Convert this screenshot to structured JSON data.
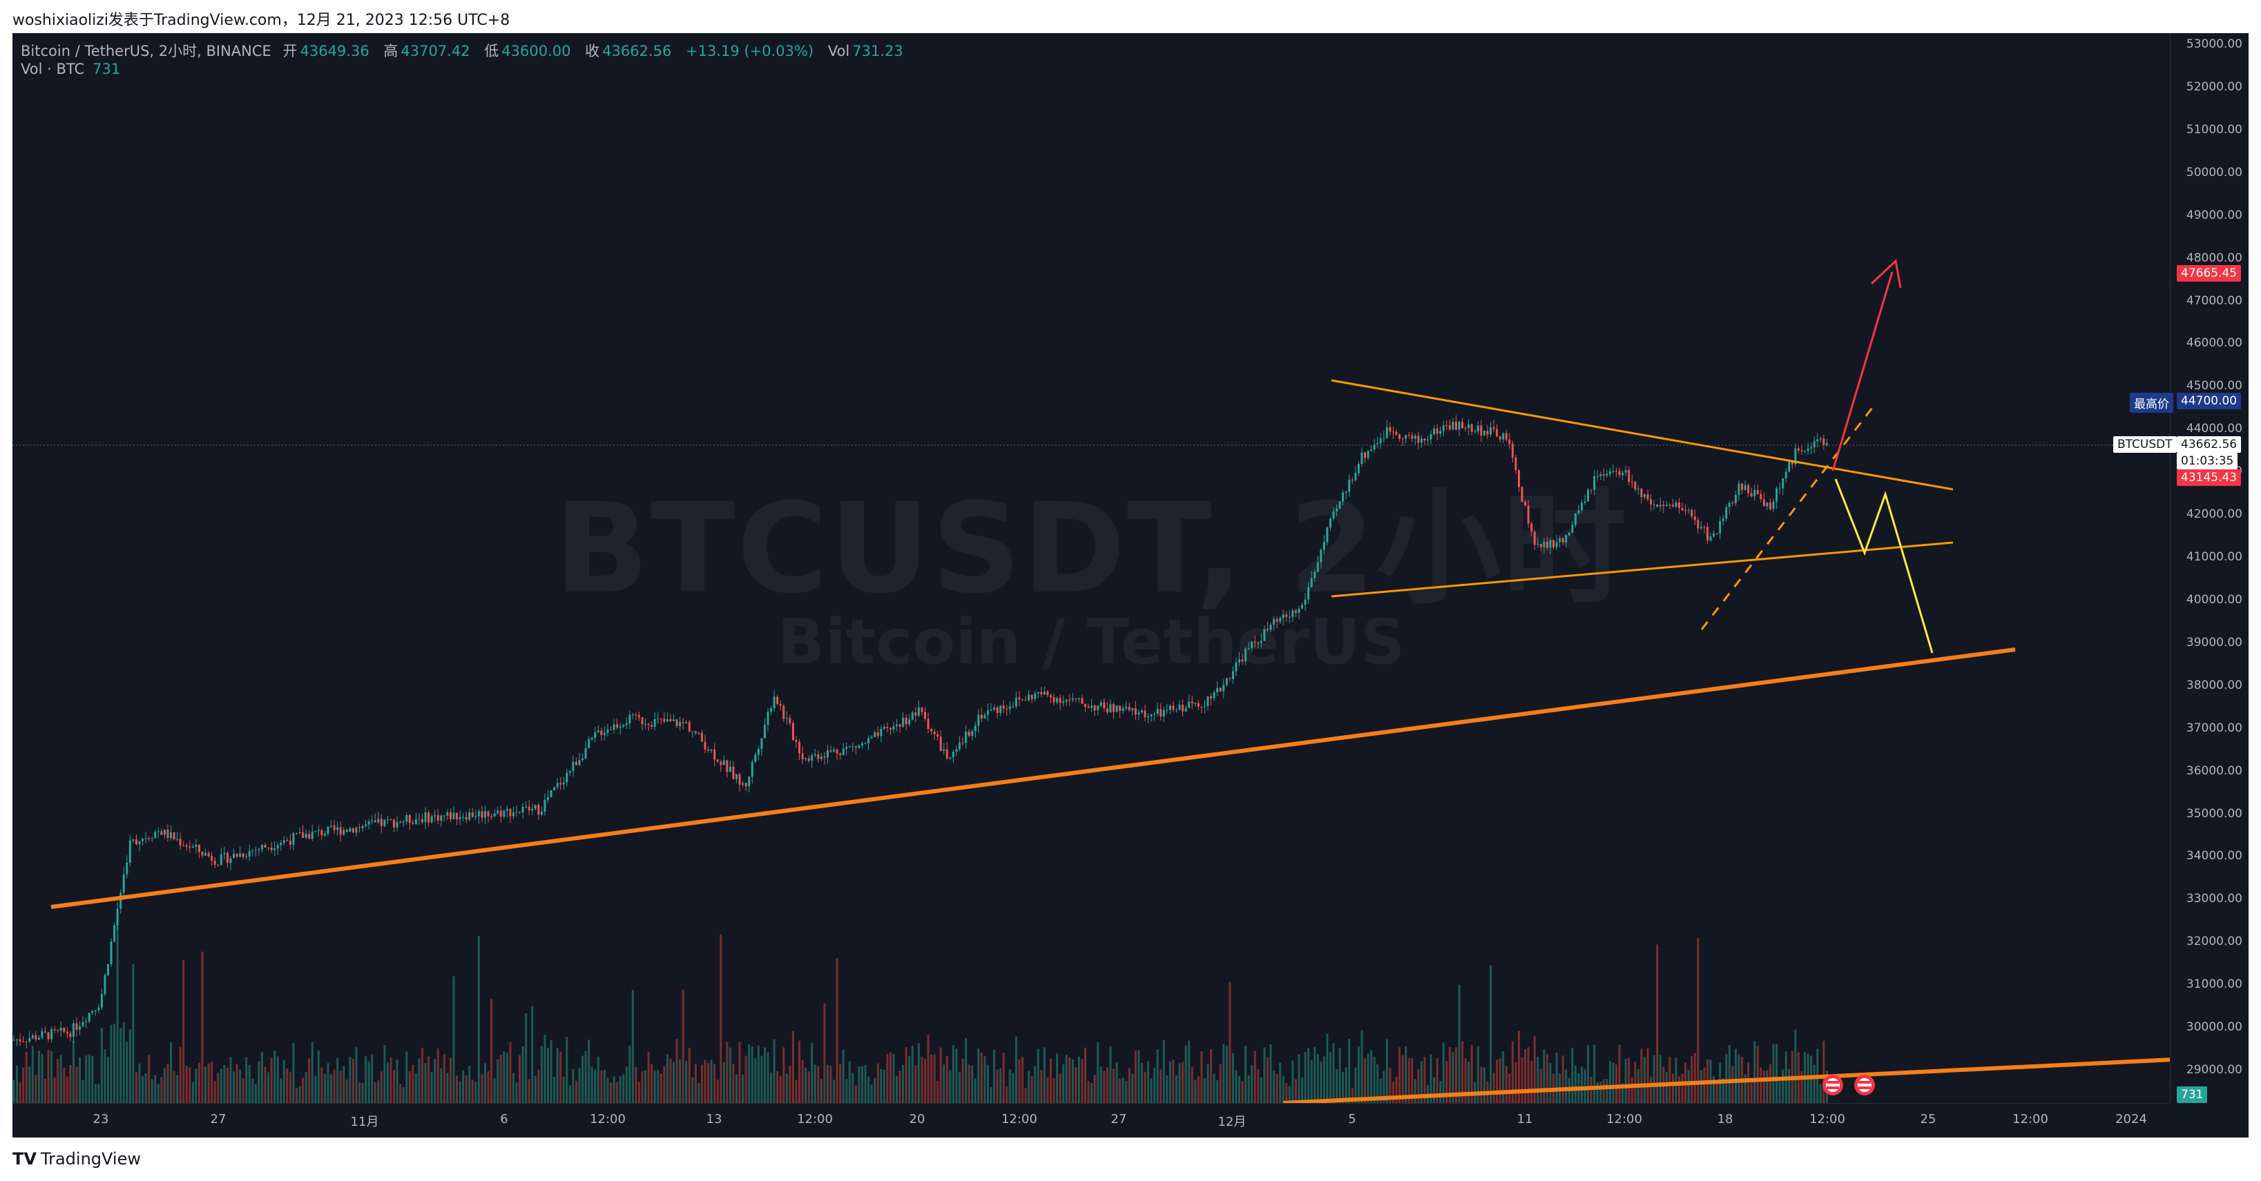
{
  "caption": "woshixiaolizi发表于TradingView.com，12月 21, 2023 12:56 UTC+8",
  "legend": {
    "symbol": "Bitcoin / TetherUS, 2小时, BINANCE",
    "open_label": "开",
    "open": "43649.36",
    "high_label": "高",
    "high": "43707.42",
    "low_label": "低",
    "low": "43600.00",
    "close_label": "收",
    "close": "43662.56",
    "change": "+13.19 (+0.03%)",
    "vol_label": "Vol",
    "vol": "731.23",
    "vol_line_label": "Vol · BTC",
    "vol_line_value": "731"
  },
  "watermark": {
    "main": "BTCUSDT, 2小时",
    "sub": "Bitcoin / TetherUS"
  },
  "tags": {
    "high_label": "最高价",
    "high_value": "44700.00",
    "symbol": "BTCUSDT",
    "last_price": "43662.56",
    "countdown": "01:03:35",
    "red_top": "47665.45",
    "red_bottom": "43145.43",
    "vol": "731"
  },
  "footer": {
    "logo_mark": "TV",
    "brand": "TradingView"
  },
  "colors": {
    "background": "#131722",
    "up": "#26a69a",
    "down": "#ef5350",
    "trendline": "#f57f17",
    "trendline_light": "#ff9800",
    "bull_arrow": "#f23645",
    "bear_path": "#ffeb3b"
  },
  "chart_data": {
    "type": "candlestick",
    "symbol": "BTCUSDT",
    "interval": "2小时",
    "exchange": "BINANCE",
    "ylim": [
      28500,
      53200
    ],
    "y_ticks": [
      29000,
      30000,
      31000,
      32000,
      33000,
      34000,
      35000,
      36000,
      37000,
      38000,
      39000,
      40000,
      41000,
      42000,
      43000,
      44000,
      45000,
      46000,
      47000,
      48000,
      49000,
      50000,
      51000,
      52000,
      53000
    ],
    "x_ticks": [
      "23",
      "27",
      "11月",
      "6",
      "12:00",
      "13",
      "12:00",
      "20",
      "12:00",
      "27",
      "12月",
      "5",
      "11",
      "12:00",
      "18",
      "12:00",
      "25",
      "12:00",
      "2024"
    ],
    "price_path": [
      {
        "date": "2023-10-20",
        "close": 29700
      },
      {
        "date": "2023-10-22",
        "close": 29900
      },
      {
        "date": "2023-10-23",
        "close": 30600
      },
      {
        "date": "2023-10-24",
        "close": 34300
      },
      {
        "date": "2023-10-25",
        "close": 34600
      },
      {
        "date": "2023-10-27",
        "close": 33900
      },
      {
        "date": "2023-10-30",
        "close": 34500
      },
      {
        "date": "2023-11-01",
        "close": 34700
      },
      {
        "date": "2023-11-03",
        "close": 34900
      },
      {
        "date": "2023-11-05",
        "close": 35000
      },
      {
        "date": "2023-11-07",
        "close": 35100
      },
      {
        "date": "2023-11-09",
        "close": 36900
      },
      {
        "date": "2023-11-10",
        "close": 37200
      },
      {
        "date": "2023-11-12",
        "close": 37100
      },
      {
        "date": "2023-11-14",
        "close": 35600
      },
      {
        "date": "2023-11-15",
        "close": 37800
      },
      {
        "date": "2023-11-16",
        "close": 36300
      },
      {
        "date": "2023-11-18",
        "close": 36600
      },
      {
        "date": "2023-11-20",
        "close": 37400
      },
      {
        "date": "2023-11-21",
        "close": 36200
      },
      {
        "date": "2023-11-22",
        "close": 37300
      },
      {
        "date": "2023-11-24",
        "close": 37800
      },
      {
        "date": "2023-11-26",
        "close": 37500
      },
      {
        "date": "2023-11-28",
        "close": 37300
      },
      {
        "date": "2023-11-30",
        "close": 37700
      },
      {
        "date": "2023-12-01",
        "close": 38700
      },
      {
        "date": "2023-12-02",
        "close": 39400
      },
      {
        "date": "2023-12-03",
        "close": 39800
      },
      {
        "date": "2023-12-04",
        "close": 41800
      },
      {
        "date": "2023-12-05",
        "close": 43300
      },
      {
        "date": "2023-12-06",
        "close": 44000
      },
      {
        "date": "2023-12-07",
        "close": 43700
      },
      {
        "date": "2023-12-08",
        "close": 44100
      },
      {
        "date": "2023-12-09",
        "close": 44000
      },
      {
        "date": "2023-12-10",
        "close": 43800
      },
      {
        "date": "2023-12-11",
        "close": 41200
      },
      {
        "date": "2023-12-12",
        "close": 41400
      },
      {
        "date": "2023-12-13",
        "close": 42800
      },
      {
        "date": "2023-12-14",
        "close": 43000
      },
      {
        "date": "2023-12-15",
        "close": 42100
      },
      {
        "date": "2023-12-16",
        "close": 42200
      },
      {
        "date": "2023-12-17",
        "close": 41400
      },
      {
        "date": "2023-12-18",
        "close": 42700
      },
      {
        "date": "2023-12-19",
        "close": 42200
      },
      {
        "date": "2023-12-20",
        "close": 43600
      },
      {
        "date": "2023-12-21",
        "close": 43662.56
      }
    ],
    "last_price": 43662.56,
    "highest_price": 44700.0,
    "annotations": {
      "target_up": 47665.45,
      "level": 43145.43
    }
  }
}
